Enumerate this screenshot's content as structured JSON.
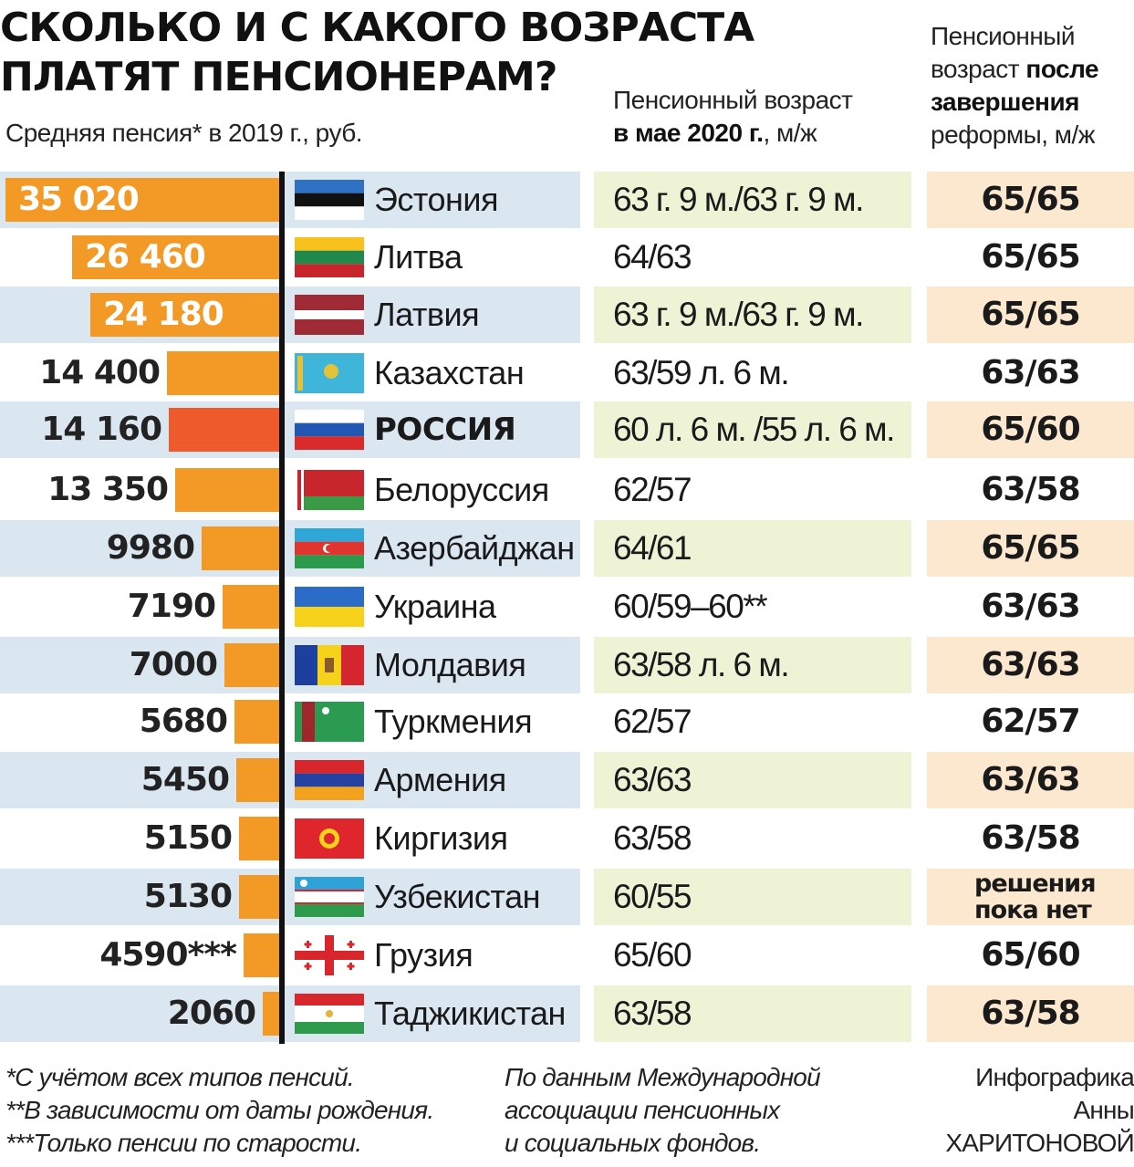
{
  "title": "СКОЛЬКО И С КАКОГО ВОЗРАСТА\nПЛАТЯТ ПЕНСИОНЕРАМ?",
  "subtitle": "Средняя пенсия* в 2019 г., руб.",
  "col_now_header": {
    "regular": "Пенсионный возраст",
    "bold": "в мае 2020 г.",
    "tail": ", м/ж"
  },
  "col_reform_header": {
    "regular1": "Пенсионный",
    "regular2": "возраст ",
    "bold1": "после",
    "bold2": "завершения",
    "regular3": "реформы, м/ж"
  },
  "colors": {
    "bar": "#f39a26",
    "bar_highlight": "#ef5a2c",
    "band_blue": "#dae6f0",
    "band_green": "#eef3d6",
    "band_peach": "#fbe8cf",
    "axis": "#111111"
  },
  "chart_data": {
    "type": "bar",
    "orientation": "horizontal",
    "title": "СКОЛЬКО И С КАКОГО ВОЗРАСТА ПЛАТЯТ ПЕНСИОНЕРАМ?",
    "subtitle": "Средняя пенсия* в 2019 г., руб.",
    "xlim": [
      0,
      35020
    ],
    "categories": [
      "Эстония",
      "Литва",
      "Латвия",
      "Казахстан",
      "РОССИЯ",
      "Белоруссия",
      "Азербайджан",
      "Украина",
      "Молдавия",
      "Туркмения",
      "Армения",
      "Киргизия",
      "Узбекистан",
      "Грузия",
      "Таджикистан"
    ],
    "values": [
      35020,
      26460,
      24180,
      14400,
      14160,
      13350,
      9980,
      7190,
      7000,
      5680,
      5450,
      5150,
      5130,
      4590,
      2060
    ],
    "value_labels": [
      "35 020",
      "26 460",
      "24 180",
      "14 400",
      "14 160",
      "13 350",
      "9980",
      "7190",
      "7000",
      "5680",
      "5450",
      "5150",
      "5130",
      "4590***",
      "2060"
    ],
    "label_inside": [
      true,
      true,
      true,
      false,
      false,
      false,
      false,
      false,
      false,
      false,
      false,
      false,
      false,
      false,
      false
    ],
    "highlight": [
      false,
      false,
      false,
      false,
      true,
      false,
      false,
      false,
      false,
      false,
      false,
      false,
      false,
      false,
      false
    ],
    "retirement_age_may_2020": [
      "63 г. 9 м./63 г. 9 м.",
      "64/63",
      "63 г. 9 м./63 г. 9 м.",
      "63/59 л. 6 м.",
      "60 л. 6 м. /55 л. 6 м.",
      "62/57",
      "64/61",
      "60/59–60**",
      "63/58 л. 6 м.",
      "62/57",
      "63/63",
      "63/58",
      "60/55",
      "65/60",
      "63/58"
    ],
    "retirement_age_after_reform": [
      "65/65",
      "65/65",
      "65/65",
      "63/63",
      "65/60",
      "63/58",
      "65/65",
      "63/63",
      "63/63",
      "62/57",
      "63/63",
      "63/58",
      "решения\nпока нет",
      "65/60",
      "63/58"
    ],
    "flags": [
      "estonia-flag",
      "lithuania-flag",
      "latvia-flag",
      "kazakhstan-flag",
      "russia-flag",
      "belarus-flag",
      "azerbaijan-flag",
      "ukraine-flag",
      "moldova-flag",
      "turkmenistan-flag",
      "armenia-flag",
      "kyrgyzstan-flag",
      "uzbekistan-flag",
      "georgia-flag",
      "tajikistan-flag"
    ]
  },
  "footnotes": {
    "col1": "*С учётом всех типов пенсий.\n**В зависимости от даты рождения.\n***Только пенсии по старости.",
    "col2": "По данным Международной\nассоциации пенсионных\nи социальных фондов.",
    "credit": "Инфографика\nАнны\nХАРИТОНОВОЙ"
  }
}
